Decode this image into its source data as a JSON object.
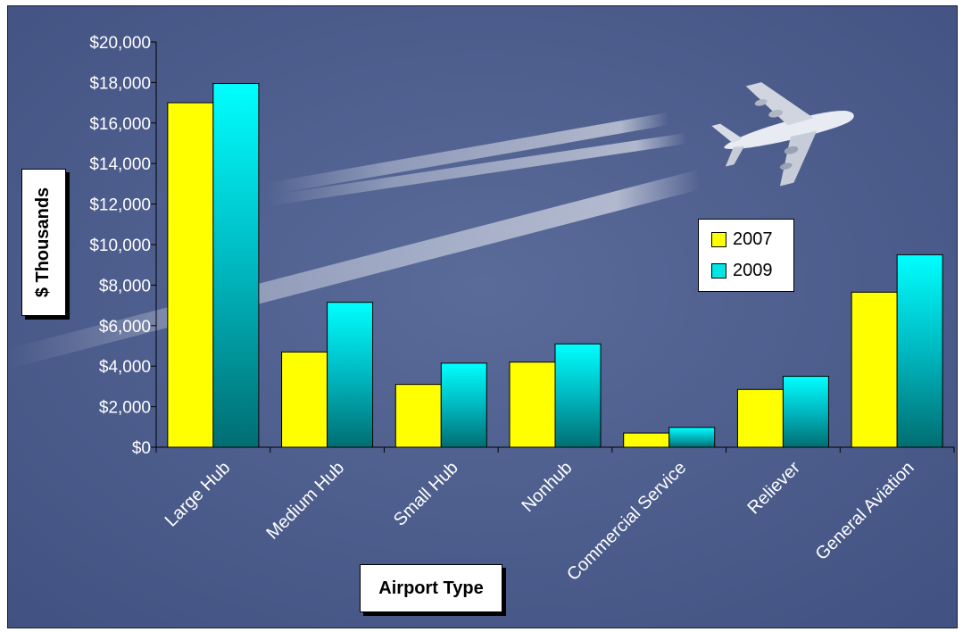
{
  "chart_data": {
    "type": "bar",
    "categories": [
      "Large Hub",
      "Medium Hub",
      "Small Hub",
      "Nonhub",
      "Commercial Service",
      "Reliever",
      "General Aviation"
    ],
    "series": [
      {
        "name": "2007",
        "values": [
          17000,
          4700,
          3100,
          4200,
          700,
          2850,
          7650
        ],
        "color": "#ffff00"
      },
      {
        "name": "2009",
        "values": [
          17950,
          7150,
          4150,
          5100,
          980,
          3500,
          9500
        ],
        "color": "#00e5e5"
      }
    ],
    "title": "",
    "xlabel": "Airport Type",
    "ylabel": "$ Thousands",
    "ylim": [
      0,
      20000
    ],
    "yticks": [
      0,
      2000,
      4000,
      6000,
      8000,
      10000,
      12000,
      14000,
      16000,
      18000,
      20000
    ],
    "ytick_labels": [
      "$0",
      "$2,000",
      "$4,000",
      "$6,000",
      "$8,000",
      "$10,000",
      "$12,000",
      "$14,000",
      "$16,000",
      "$18,000",
      "$20,000"
    ],
    "legend_position": "right",
    "grid": false,
    "background_color": "#4a5a88"
  }
}
